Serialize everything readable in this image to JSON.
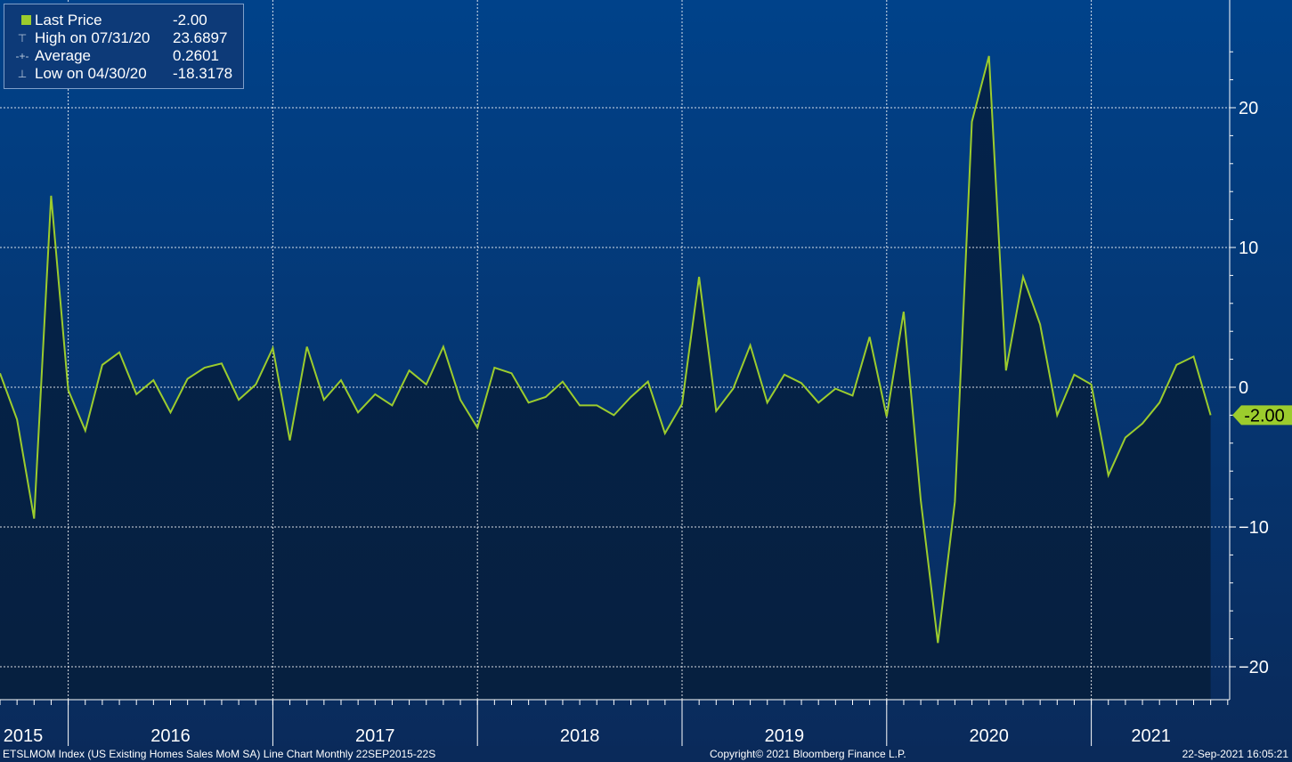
{
  "legend": {
    "items": [
      {
        "label": "Last Price",
        "value": "-2.00",
        "icon": "square-icon"
      },
      {
        "label": "High on 07/31/20",
        "value": "23.6897",
        "icon": "high-marker-icon"
      },
      {
        "label": "Average",
        "value": "0.2601",
        "icon": "average-marker-icon"
      },
      {
        "label": "Low on 04/30/20",
        "value": "-18.3178",
        "icon": "low-marker-icon"
      }
    ]
  },
  "footer": {
    "left": "ETSLMOM Index (US Existing Homes Sales MoM SA) Line Chart  Monthly 22SEP2015-22S",
    "center": "Copyright© 2021 Bloomberg Finance L.P.",
    "right": "22-Sep-2021 16:05:21"
  },
  "colors": {
    "line": "#9ccc2d",
    "fill": "#04224a",
    "background_top": "#00428a",
    "background_bottom": "#0a2a5a",
    "grid": "#ffffff",
    "text": "#ffffff"
  },
  "chart_data": {
    "type": "area",
    "series": [
      {
        "name": "Last Price",
        "x": [
          "2015-09",
          "2015-10",
          "2015-11",
          "2015-12",
          "2016-01",
          "2016-02",
          "2016-03",
          "2016-04",
          "2016-05",
          "2016-06",
          "2016-07",
          "2016-08",
          "2016-09",
          "2016-10",
          "2016-11",
          "2016-12",
          "2017-01",
          "2017-02",
          "2017-03",
          "2017-04",
          "2017-05",
          "2017-06",
          "2017-07",
          "2017-08",
          "2017-09",
          "2017-10",
          "2017-11",
          "2017-12",
          "2018-01",
          "2018-02",
          "2018-03",
          "2018-04",
          "2018-05",
          "2018-06",
          "2018-07",
          "2018-08",
          "2018-09",
          "2018-10",
          "2018-11",
          "2018-12",
          "2019-01",
          "2019-02",
          "2019-03",
          "2019-04",
          "2019-05",
          "2019-06",
          "2019-07",
          "2019-08",
          "2019-09",
          "2019-10",
          "2019-11",
          "2019-12",
          "2020-01",
          "2020-02",
          "2020-03",
          "2020-04",
          "2020-05",
          "2020-06",
          "2020-07",
          "2020-08",
          "2020-09",
          "2020-10",
          "2020-11",
          "2020-12",
          "2021-01",
          "2021-02",
          "2021-03",
          "2021-04",
          "2021-05",
          "2021-06",
          "2021-07",
          "2021-08"
        ],
        "values": [
          1.0,
          -2.3,
          -9.4,
          13.7,
          -0.2,
          -3.1,
          1.6,
          2.5,
          -0.5,
          0.5,
          -1.8,
          0.6,
          1.4,
          1.7,
          -0.9,
          0.2,
          2.8,
          -3.8,
          2.9,
          -0.9,
          0.5,
          -1.8,
          -0.5,
          -1.3,
          1.2,
          0.2,
          2.9,
          -0.9,
          -2.9,
          1.4,
          1.0,
          -1.1,
          -0.7,
          0.4,
          -1.3,
          -1.3,
          -2.0,
          -0.7,
          0.4,
          -3.3,
          -1.2,
          7.9,
          -1.7,
          -0.1,
          3.0,
          -1.1,
          0.9,
          0.3,
          -1.1,
          -0.1,
          -0.6,
          3.6,
          -2.1,
          5.4,
          -8.1,
          -18.3,
          -8.2,
          19.0,
          23.7,
          1.2,
          7.9,
          4.5,
          -2.0,
          0.9,
          0.2,
          -6.3,
          -3.6,
          -2.6,
          -1.1,
          1.6,
          2.2,
          -2.0
        ]
      }
    ],
    "last_value_label": "-2.00",
    "yticks": [
      20,
      10,
      0,
      -10,
      -20
    ],
    "ylim": [
      -22.2,
      27.9
    ],
    "xlabels": [
      "2015",
      "2016",
      "2017",
      "2018",
      "2019",
      "2020",
      "2021"
    ],
    "grid": true,
    "legend_position": "top-left",
    "y_axis_side": "right"
  }
}
